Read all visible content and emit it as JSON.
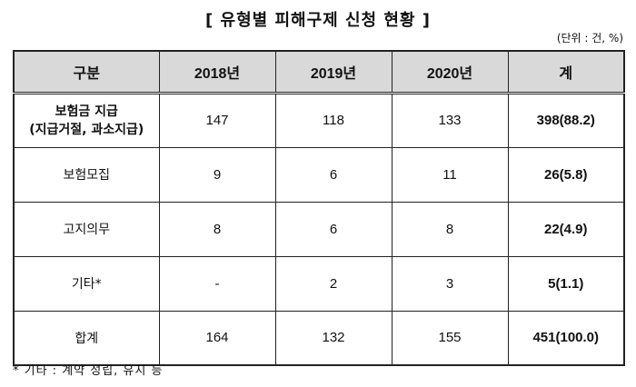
{
  "title": "[ 유형별 피해구제 신청 현황 ]",
  "unit": "(단위 : 건, %)",
  "table": {
    "headers": [
      "구분",
      "2018년",
      "2019년",
      "2020년",
      "계"
    ],
    "rows": [
      {
        "category_line1": "보험금 지급",
        "category_line2": "(지급거절, 과소지급)",
        "y2018": "147",
        "y2019": "118",
        "y2020": "133",
        "total": "398(88.2)"
      },
      {
        "category": "보험모집",
        "y2018": "9",
        "y2019": "6",
        "y2020": "11",
        "total": "26(5.8)"
      },
      {
        "category": "고지의무",
        "y2018": "8",
        "y2019": "6",
        "y2020": "8",
        "total": "22(4.9)"
      },
      {
        "category": "기타*",
        "y2018": "-",
        "y2019": "2",
        "y2020": "3",
        "total": "5(1.1)"
      },
      {
        "category": "합계",
        "y2018": "164",
        "y2019": "132",
        "y2020": "155",
        "total": "451(100.0)"
      }
    ]
  },
  "footnote": "* 기타 : 계약 성립, 유지 등"
}
